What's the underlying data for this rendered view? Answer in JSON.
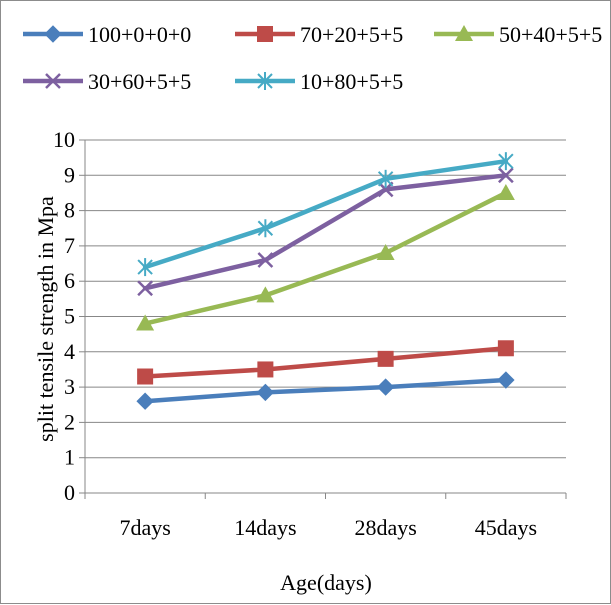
{
  "chart_data": {
    "type": "line",
    "title": "",
    "xlabel": "Age(days)",
    "ylabel": "split tensile strength in Mpa",
    "categories": [
      "7days",
      "14days",
      "28days",
      "45days"
    ],
    "ylim": [
      0,
      10
    ],
    "yticks": [
      0,
      1,
      2,
      3,
      4,
      5,
      6,
      7,
      8,
      9,
      10
    ],
    "grid": true,
    "legend_position": "top",
    "series": [
      {
        "name": "100+0+0+0",
        "values": [
          2.6,
          2.85,
          3.0,
          3.2
        ],
        "color": "#4a7ebb",
        "marker": "diamond"
      },
      {
        "name": "70+20+5+5",
        "values": [
          3.3,
          3.5,
          3.8,
          4.1
        ],
        "color": "#be4b48",
        "marker": "square"
      },
      {
        "name": "50+40+5+5",
        "values": [
          4.8,
          5.6,
          6.8,
          8.5
        ],
        "color": "#98b954",
        "marker": "triangle"
      },
      {
        "name": "30+60+5+5",
        "values": [
          5.8,
          6.6,
          8.6,
          9.0
        ],
        "color": "#7d60a0",
        "marker": "x"
      },
      {
        "name": "10+80+5+5",
        "values": [
          6.4,
          7.5,
          8.9,
          9.4
        ],
        "color": "#46aac5",
        "marker": "star"
      }
    ]
  }
}
